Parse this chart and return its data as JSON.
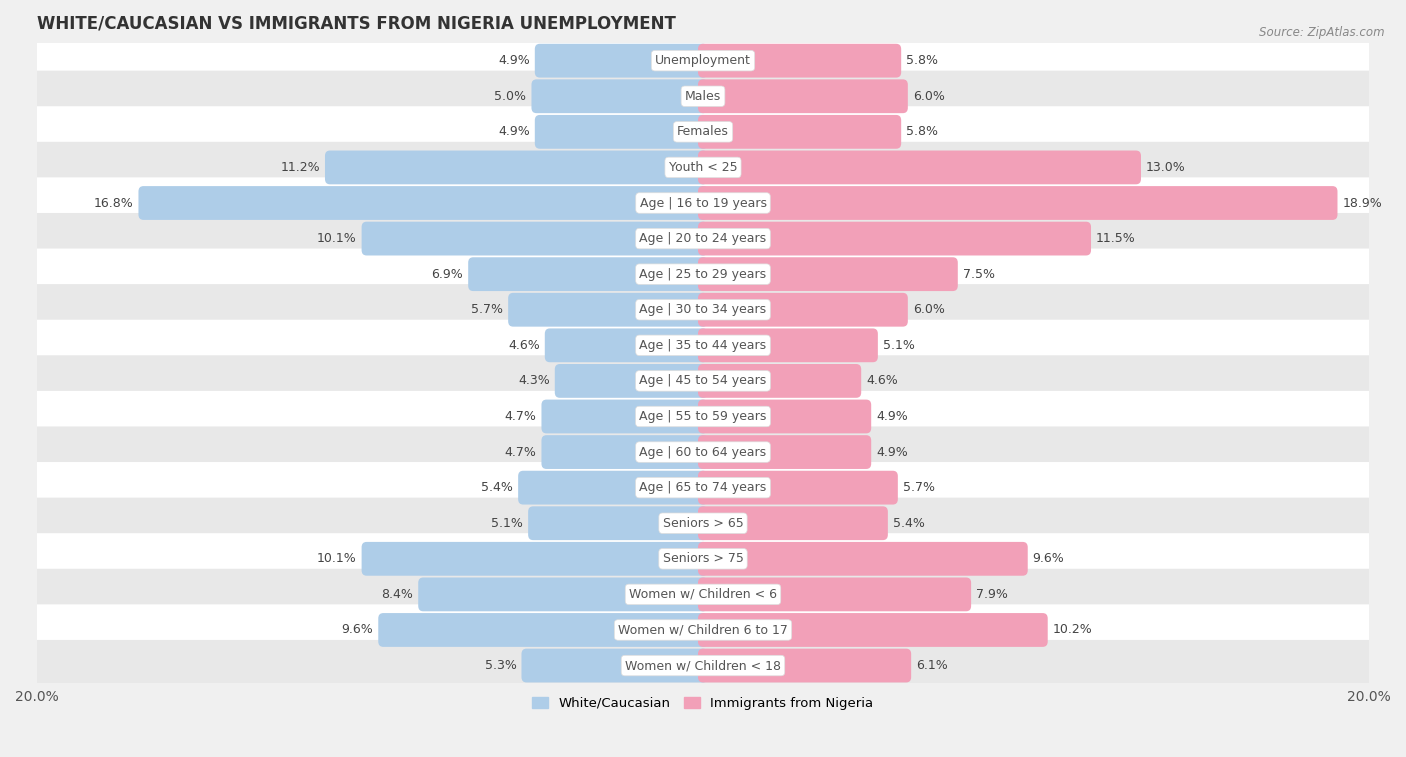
{
  "title": "WHITE/CAUCASIAN VS IMMIGRANTS FROM NIGERIA UNEMPLOYMENT",
  "source": "Source: ZipAtlas.com",
  "categories": [
    "Unemployment",
    "Males",
    "Females",
    "Youth < 25",
    "Age | 16 to 19 years",
    "Age | 20 to 24 years",
    "Age | 25 to 29 years",
    "Age | 30 to 34 years",
    "Age | 35 to 44 years",
    "Age | 45 to 54 years",
    "Age | 55 to 59 years",
    "Age | 60 to 64 years",
    "Age | 65 to 74 years",
    "Seniors > 65",
    "Seniors > 75",
    "Women w/ Children < 6",
    "Women w/ Children 6 to 17",
    "Women w/ Children < 18"
  ],
  "white_values": [
    4.9,
    5.0,
    4.9,
    11.2,
    16.8,
    10.1,
    6.9,
    5.7,
    4.6,
    4.3,
    4.7,
    4.7,
    5.4,
    5.1,
    10.1,
    8.4,
    9.6,
    5.3
  ],
  "nigeria_values": [
    5.8,
    6.0,
    5.8,
    13.0,
    18.9,
    11.5,
    7.5,
    6.0,
    5.1,
    4.6,
    4.9,
    4.9,
    5.7,
    5.4,
    9.6,
    7.9,
    10.2,
    6.1
  ],
  "white_color": "#aecde8",
  "nigeria_color": "#f2a0b8",
  "max_val": 20.0,
  "bar_height": 0.65,
  "bg_color": "#f0f0f0",
  "row_color_odd": "#ffffff",
  "row_color_even": "#e8e8e8",
  "label_fontsize": 9,
  "value_fontsize": 9,
  "title_fontsize": 12,
  "legend_fontsize": 9.5,
  "center_label_bg": "#f0f0f0",
  "center_label_color": "#555555",
  "value_color": "#444444"
}
